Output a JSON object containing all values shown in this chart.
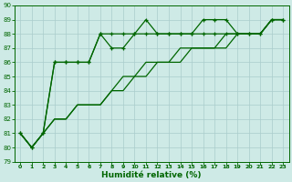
{
  "xlabel": "Humidité relative (%)",
  "xlim": [
    -0.5,
    23.5
  ],
  "ylim": [
    79,
    90
  ],
  "yticks": [
    79,
    80,
    81,
    82,
    83,
    84,
    85,
    86,
    87,
    88,
    89,
    90
  ],
  "xticks": [
    0,
    1,
    2,
    3,
    4,
    5,
    6,
    7,
    8,
    9,
    10,
    11,
    12,
    13,
    14,
    15,
    16,
    17,
    18,
    19,
    20,
    21,
    22,
    23
  ],
  "bg_color": "#ceeae6",
  "grid_color": "#aacccc",
  "line_color": "#006600",
  "series_marked1": [
    81,
    80,
    81,
    86,
    86,
    86,
    86,
    88,
    88,
    88,
    88,
    89,
    88,
    88,
    88,
    88,
    89,
    89,
    89,
    88,
    88,
    88,
    89,
    89
  ],
  "series_marked2": [
    81,
    80,
    81,
    86,
    86,
    86,
    86,
    88,
    87,
    87,
    88,
    88,
    88,
    88,
    88,
    88,
    88,
    88,
    88,
    88,
    88,
    88,
    89,
    89
  ],
  "series_plain1": [
    81,
    80,
    81,
    82,
    82,
    83,
    83,
    83,
    84,
    85,
    85,
    86,
    86,
    86,
    87,
    87,
    87,
    87,
    88,
    88,
    88,
    88,
    89,
    89
  ],
  "series_plain2": [
    81,
    80,
    81,
    82,
    82,
    83,
    83,
    83,
    84,
    84,
    85,
    85,
    86,
    86,
    86,
    87,
    87,
    87,
    87,
    88,
    88,
    88,
    89,
    89
  ]
}
